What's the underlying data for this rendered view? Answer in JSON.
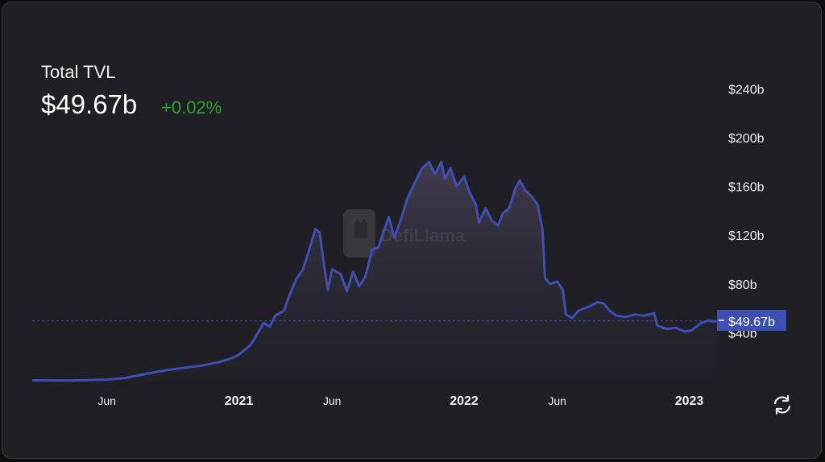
{
  "header": {
    "title": "Total TVL",
    "value": "$49.67b",
    "change": "+0.02%"
  },
  "watermark": "DefiLlama",
  "colors": {
    "line": "#3e4fb3",
    "badge": "#3e4fb3",
    "change": "#29a329",
    "background": "#1f1f25"
  },
  "icons": {
    "refresh": "refresh-icon",
    "logo": "llama-logo-icon"
  },
  "chart_data": {
    "type": "area",
    "title": "Total TVL",
    "xlabel": "",
    "ylabel": "",
    "x_ticks": [
      {
        "date": "2020-06-01",
        "label": "Jun"
      },
      {
        "date": "2021-01-01",
        "label": "2021"
      },
      {
        "date": "2021-06-01",
        "label": "Jun"
      },
      {
        "date": "2022-01-01",
        "label": "2022"
      },
      {
        "date": "2022-06-01",
        "label": "Jun"
      },
      {
        "date": "2023-01-01",
        "label": "2023"
      }
    ],
    "y_ticks": [
      {
        "value": 40,
        "label": "$40b"
      },
      {
        "value": 80,
        "label": "$80b"
      },
      {
        "value": 120,
        "label": "$120b"
      },
      {
        "value": 160,
        "label": "$160b"
      },
      {
        "value": 200,
        "label": "$200b"
      },
      {
        "value": 240,
        "label": "$240b"
      }
    ],
    "ylim": [
      0,
      260
    ],
    "xlim": [
      "2020-02-01",
      "2023-02-15"
    ],
    "current": {
      "value": 49.67,
      "label": "$49.67b"
    },
    "series": [
      {
        "points": [
          [
            "2020-02-01",
            1
          ],
          [
            "2020-04-01",
            0.8
          ],
          [
            "2020-06-01",
            1.5
          ],
          [
            "2020-07-01",
            3
          ],
          [
            "2020-08-01",
            6
          ],
          [
            "2020-09-01",
            9
          ],
          [
            "2020-10-01",
            11
          ],
          [
            "2020-11-01",
            13
          ],
          [
            "2020-12-01",
            16
          ],
          [
            "2020-12-20",
            19
          ],
          [
            "2021-01-01",
            22
          ],
          [
            "2021-01-20",
            30
          ],
          [
            "2021-02-01",
            40
          ],
          [
            "2021-02-10",
            48
          ],
          [
            "2021-02-20",
            45
          ],
          [
            "2021-03-01",
            54
          ],
          [
            "2021-03-15",
            58
          ],
          [
            "2021-03-25",
            72
          ],
          [
            "2021-04-05",
            85
          ],
          [
            "2021-04-15",
            92
          ],
          [
            "2021-04-25",
            108
          ],
          [
            "2021-05-05",
            125
          ],
          [
            "2021-05-12",
            122
          ],
          [
            "2021-05-20",
            92
          ],
          [
            "2021-05-25",
            75
          ],
          [
            "2021-06-01",
            92
          ],
          [
            "2021-06-15",
            88
          ],
          [
            "2021-06-25",
            74
          ],
          [
            "2021-07-05",
            90
          ],
          [
            "2021-07-15",
            78
          ],
          [
            "2021-07-25",
            86
          ],
          [
            "2021-08-05",
            108
          ],
          [
            "2021-08-15",
            110
          ],
          [
            "2021-08-25",
            125
          ],
          [
            "2021-09-01",
            135
          ],
          [
            "2021-09-10",
            118
          ],
          [
            "2021-09-20",
            132
          ],
          [
            "2021-10-01",
            150
          ],
          [
            "2021-10-15",
            165
          ],
          [
            "2021-10-25",
            175
          ],
          [
            "2021-11-05",
            180
          ],
          [
            "2021-11-15",
            170
          ],
          [
            "2021-11-25",
            180
          ],
          [
            "2021-12-01",
            166
          ],
          [
            "2021-12-10",
            175
          ],
          [
            "2021-12-20",
            160
          ],
          [
            "2022-01-01",
            168
          ],
          [
            "2022-01-10",
            155
          ],
          [
            "2022-01-20",
            145
          ],
          [
            "2022-01-25",
            130
          ],
          [
            "2022-02-05",
            142
          ],
          [
            "2022-02-15",
            132
          ],
          [
            "2022-02-25",
            128
          ],
          [
            "2022-03-05",
            138
          ],
          [
            "2022-03-15",
            142
          ],
          [
            "2022-03-25",
            158
          ],
          [
            "2022-04-01",
            165
          ],
          [
            "2022-04-10",
            157
          ],
          [
            "2022-04-20",
            152
          ],
          [
            "2022-04-30",
            145
          ],
          [
            "2022-05-08",
            125
          ],
          [
            "2022-05-12",
            85
          ],
          [
            "2022-05-20",
            80
          ],
          [
            "2022-06-01",
            82
          ],
          [
            "2022-06-10",
            75
          ],
          [
            "2022-06-15",
            55
          ],
          [
            "2022-06-25",
            52
          ],
          [
            "2022-07-05",
            58
          ],
          [
            "2022-07-15",
            60
          ],
          [
            "2022-07-25",
            62
          ],
          [
            "2022-08-05",
            65
          ],
          [
            "2022-08-15",
            64
          ],
          [
            "2022-08-25",
            58
          ],
          [
            "2022-09-05",
            54
          ],
          [
            "2022-09-20",
            53
          ],
          [
            "2022-10-05",
            55
          ],
          [
            "2022-10-20",
            54
          ],
          [
            "2022-11-05",
            56
          ],
          [
            "2022-11-10",
            46
          ],
          [
            "2022-11-25",
            43
          ],
          [
            "2022-12-10",
            44
          ],
          [
            "2022-12-25",
            41
          ],
          [
            "2023-01-05",
            42
          ],
          [
            "2023-01-20",
            48
          ],
          [
            "2023-02-01",
            50
          ],
          [
            "2023-02-10",
            49
          ],
          [
            "2023-02-15",
            49.67
          ]
        ]
      }
    ]
  }
}
